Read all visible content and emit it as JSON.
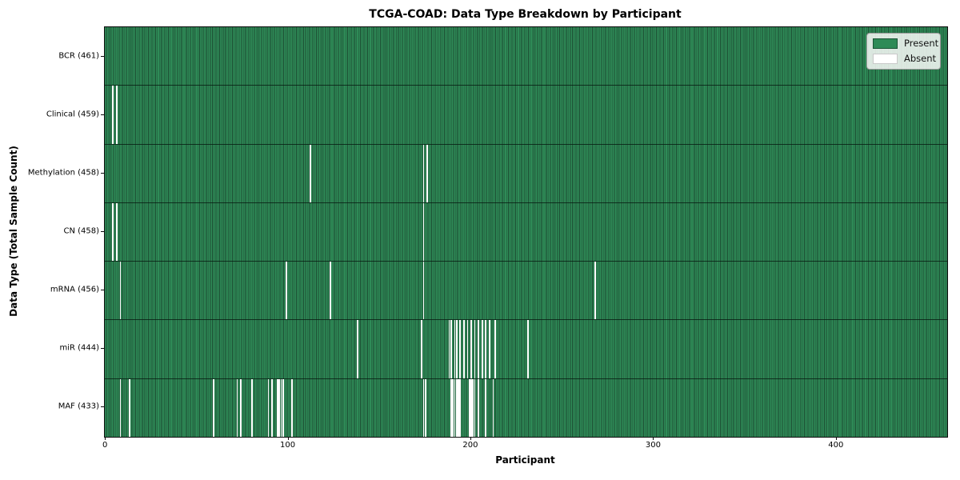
{
  "title": "TCGA-COAD: Data Type Breakdown by Participant",
  "axes": {
    "xlabel": "Participant",
    "ylabel": "Data Type (Total Sample Count)"
  },
  "legend": {
    "present_label": "Present",
    "absent_label": "Absent"
  },
  "colors": {
    "present": "#2e8b57",
    "absent": "#ffffff",
    "cell_edge": "#1d4e33",
    "axis": "#0d0d0d"
  },
  "chart_data": {
    "type": "heatmap",
    "title": "TCGA-COAD: Data Type Breakdown by Participant",
    "xlabel": "Participant",
    "ylabel": "Data Type (Total Sample Count)",
    "legend_entries": [
      "Present",
      "Absent"
    ],
    "legend_position": "upper right",
    "grid": false,
    "n_participants": 461,
    "x_ticks": [
      0,
      100,
      200,
      300,
      400
    ],
    "value_encoding": {
      "present": 1,
      "absent": 0
    },
    "rows": [
      {
        "label": "BCR (461)",
        "data_type": "BCR",
        "present_count": 461,
        "absent_participants": []
      },
      {
        "label": "Clinical (459)",
        "data_type": "Clinical",
        "present_count": 459,
        "absent_participants": [
          4,
          6
        ]
      },
      {
        "label": "Methylation (458)",
        "data_type": "Methylation",
        "present_count": 458,
        "absent_participants": [
          112,
          174,
          176
        ]
      },
      {
        "label": "CN (458)",
        "data_type": "CN",
        "present_count": 458,
        "absent_participants": [
          4,
          6,
          174
        ]
      },
      {
        "label": "mRNA (456)",
        "data_type": "mRNA",
        "present_count": 456,
        "absent_participants": [
          8,
          99,
          123,
          174,
          268
        ]
      },
      {
        "label": "miR (444)",
        "data_type": "miR",
        "present_count": 444,
        "absent_participants": [
          138,
          173,
          188,
          189,
          191,
          192,
          194,
          196,
          198,
          200,
          202,
          204,
          206,
          208,
          210,
          213,
          231
        ]
      },
      {
        "label": "MAF (433)",
        "data_type": "MAF",
        "present_count": 433,
        "absent_participants": [
          8,
          13,
          59,
          72,
          74,
          80,
          89,
          91,
          94,
          95,
          96,
          97,
          102,
          174,
          175,
          189,
          190,
          191,
          192,
          193,
          194,
          199,
          200,
          201,
          202,
          204,
          208,
          212
        ]
      }
    ]
  }
}
